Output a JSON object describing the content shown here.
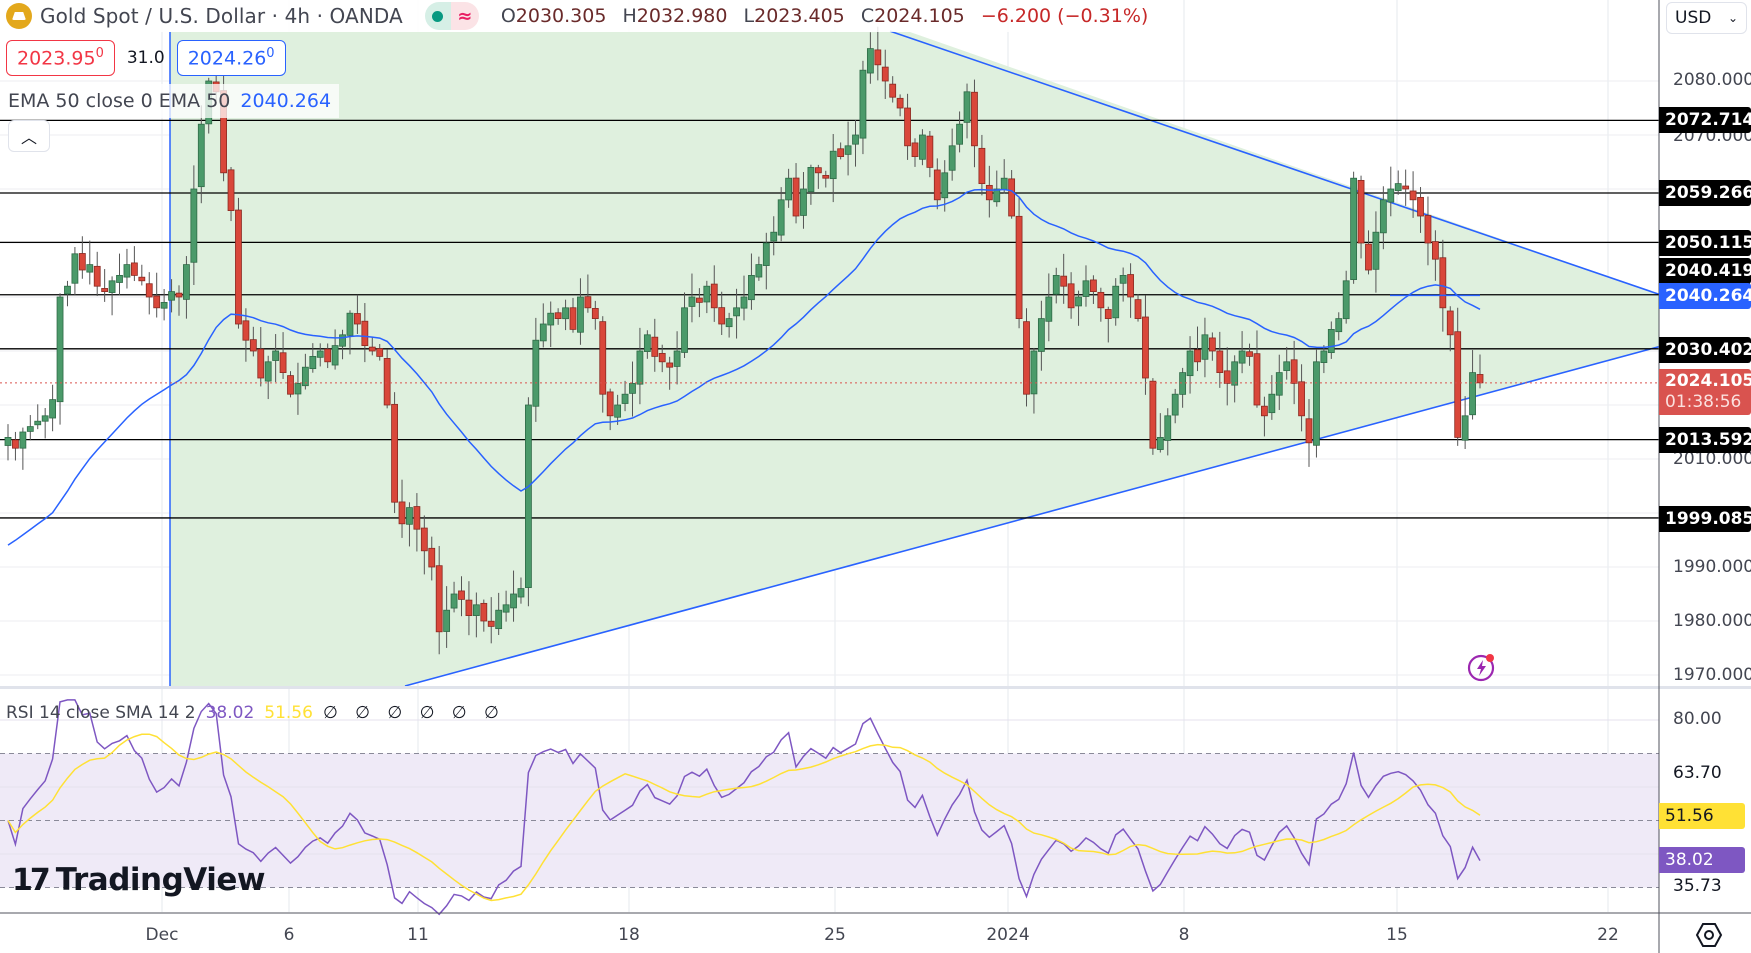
{
  "header": {
    "symbol_title": "Gold Spot / U.S. Dollar · 4h · OANDA",
    "market_status_icon": "market-open-dot",
    "delay_icon": "approx-equal-icon",
    "ohlc": {
      "open_key": "O",
      "open": "2030.305",
      "high_key": "H",
      "high": "2032.980",
      "low_key": "L",
      "low": "2023.405",
      "close_key": "C",
      "close": "2024.105",
      "change": "−6.200 (−0.31%)"
    }
  },
  "trade": {
    "sell_price": "2023.95",
    "sell_price_sup": "0",
    "spread": "31.0",
    "buy_price": "2024.26",
    "buy_price_sup": "0"
  },
  "indicators": {
    "ema_label": "EMA 50 close 0 EMA 50",
    "ema_value": "2040.264",
    "rsi_label": "RSI 14 close SMA 14 2",
    "rsi_value": "38.02",
    "rsi_sma_value": "51.56",
    "rsi_nulls": "∅ ∅ ∅ ∅ ∅ ∅"
  },
  "price_axis": {
    "currency": "USD",
    "ticks": [
      "2080.000",
      "2070.000",
      "2010.000",
      "1990.000",
      "1980.000",
      "1970.000"
    ],
    "tags": [
      {
        "label": "2072.714",
        "color": "#000000"
      },
      {
        "label": "2059.266",
        "color": "#000000"
      },
      {
        "label": "2050.115",
        "color": "#000000"
      },
      {
        "label": "2040.419",
        "color": "#000000"
      },
      {
        "label": "2040.264",
        "color": "#2962ff"
      },
      {
        "label": "2030.402",
        "color": "#000000"
      },
      {
        "label": "2013.592",
        "color": "#000000"
      },
      {
        "label": "1999.085",
        "color": "#000000"
      }
    ],
    "last_price": "2024.105",
    "countdown": "01:38:56"
  },
  "rsi_axis": {
    "ticks": [
      "80.00",
      "63.70",
      "51.56",
      "38.02",
      "35.73"
    ],
    "sma_tag": "51.56",
    "rsi_tag": "38.02"
  },
  "time_axis": {
    "labels": [
      "Dec",
      "6",
      "11",
      "18",
      "25",
      "2024",
      "8",
      "15",
      "22"
    ]
  },
  "branding": {
    "logo_text": "TradingView"
  },
  "colors": {
    "up": "#4b9a6a",
    "down": "#d9473a",
    "ema": "#2962ff",
    "triangle_fill": "#dff0de",
    "rsi": "#7e57c2",
    "rsi_sma": "#ffe135",
    "rsi_band": "#efeaf7",
    "last_price": "#d9534f"
  },
  "chart_data": {
    "type": "candlestick",
    "title": "Gold Spot / U.S. Dollar · 4h · OANDA",
    "xlabel": "",
    "ylabel": "USD",
    "ylim": [
      1965,
      2090
    ],
    "x_ticks": [
      "Dec",
      "6",
      "11",
      "18",
      "25",
      "2024",
      "8",
      "15",
      "22"
    ],
    "last": {
      "open": 2030.305,
      "high": 2032.98,
      "low": 2023.405,
      "close": 2024.105,
      "change": -6.2,
      "change_pct": -0.31
    },
    "horizontal_levels": [
      2072.714,
      2059.266,
      2050.115,
      2040.419,
      2030.402,
      2013.592,
      1999.085
    ],
    "ema50_last": 2040.264,
    "triangle": {
      "upper_line": [
        [
          2098,
          "Dec 1"
        ],
        [
          2040,
          "Jan 21"
        ]
      ],
      "lower_line": [
        [
          1967,
          "Dec 11"
        ],
        [
          2030,
          "Jan 22"
        ]
      ]
    },
    "closes_approx": [
      2014,
      2012,
      2015,
      2016,
      2017,
      2018,
      2021,
      2040,
      2042,
      2048,
      2045,
      2046,
      2042,
      2041,
      2043,
      2044,
      2046,
      2044,
      2043,
      2040,
      2038,
      2039,
      2041,
      2040,
      2046,
      2060,
      2072,
      2080,
      2078,
      2063,
      2056,
      2035,
      2032,
      2030,
      2025,
      2028,
      2030,
      2026,
      2022,
      2024,
      2027,
      2029,
      2030,
      2028,
      2031,
      2033,
      2037,
      2035,
      2031,
      2030,
      2029,
      2020,
      2002,
      1998,
      2001,
      1997,
      1993,
      1990,
      1978,
      1982,
      1985,
      1984,
      1981,
      1983,
      1980,
      1979,
      1982,
      1983,
      1985,
      1986,
      2020,
      2032,
      2035,
      2037,
      2036,
      2038,
      2034,
      2040,
      2038,
      2036,
      2022,
      2018,
      2020,
      2022,
      2024,
      2030,
      2033,
      2029,
      2028,
      2027,
      2030,
      2038,
      2040,
      2039,
      2042,
      2038,
      2035,
      2036,
      2038,
      2040,
      2044,
      2046,
      2050,
      2052,
      2058,
      2062,
      2055,
      2060,
      2064,
      2063,
      2062,
      2067,
      2066,
      2068,
      2070,
      2082,
      2086,
      2083,
      2080,
      2077,
      2075,
      2068,
      2066,
      2070,
      2064,
      2058,
      2063,
      2068,
      2072,
      2078,
      2068,
      2061,
      2058,
      2060,
      2062,
      2055,
      2036,
      2022,
      2030,
      2036,
      2040,
      2044,
      2042,
      2038,
      2040,
      2043,
      2041,
      2038,
      2036,
      2042,
      2044,
      2040,
      2036,
      2025,
      2012,
      2014,
      2018,
      2022,
      2026,
      2030,
      2028,
      2033,
      2030,
      2026,
      2024,
      2028,
      2030,
      2029,
      2020,
      2018,
      2022,
      2026,
      2028,
      2024,
      2018,
      2013,
      2028,
      2030,
      2034,
      2036,
      2043,
      2062,
      2050,
      2045,
      2052,
      2058,
      2060,
      2061,
      2060,
      2058,
      2055,
      2050,
      2047,
      2038,
      2033,
      2014,
      2018,
      2026,
      2024.105
    ],
    "rsi_approx": {
      "last": 38.02,
      "sma_last": 51.56,
      "levels": [
        70,
        50,
        30
      ],
      "max_marker": 63.7,
      "min_marker": 35.73
    }
  }
}
